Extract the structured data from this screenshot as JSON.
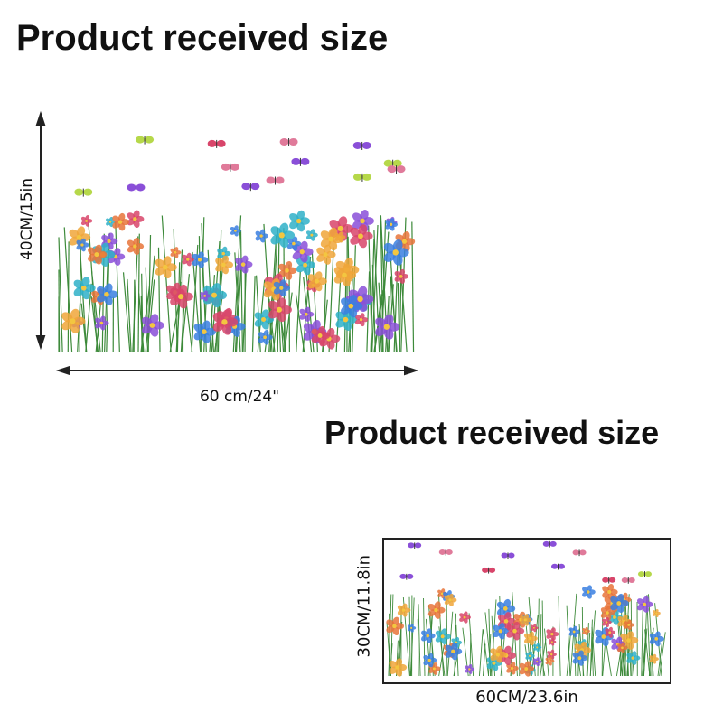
{
  "titles": {
    "large": "Product received size",
    "small": "Product received size"
  },
  "large_decal": {
    "height_label": "40CM/15in",
    "width_label": "60 cm/24\""
  },
  "small_decal": {
    "height_label": "30CM/11.8in",
    "width_label": "60CM/23.6in"
  },
  "artwork": {
    "subject": "wildflower meadow with butterflies and dragonflies",
    "colors": [
      "#3a7fe0",
      "#8a4fd8",
      "#e8743a",
      "#d8456a",
      "#f0a63a",
      "#2fb0c8",
      "#3d8a3a"
    ]
  }
}
